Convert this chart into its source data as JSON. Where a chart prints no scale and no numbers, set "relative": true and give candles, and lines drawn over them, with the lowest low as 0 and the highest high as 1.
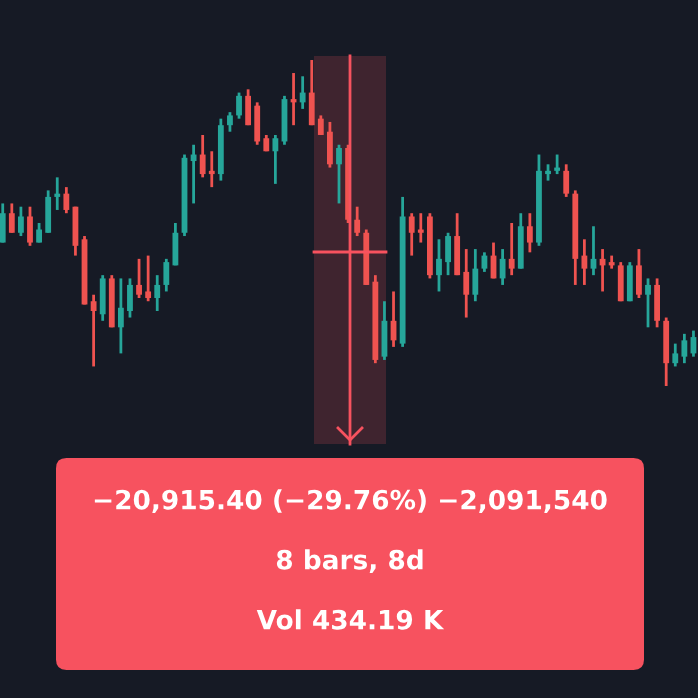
{
  "chart_data": {
    "type": "candlestick",
    "relative": true,
    "categories": [
      null,
      null,
      null,
      null,
      null,
      null,
      null,
      null,
      null,
      null,
      null,
      null,
      null,
      null,
      null,
      null,
      null,
      null,
      null,
      null,
      null,
      null,
      null,
      null,
      null,
      null,
      null,
      null,
      null,
      null,
      null,
      null,
      null,
      null,
      null,
      null,
      null,
      null,
      null,
      null,
      null,
      null,
      null,
      null,
      null,
      null,
      null,
      null,
      null,
      null,
      null,
      null,
      null,
      null,
      null,
      null,
      null,
      null,
      null,
      null,
      null,
      null,
      null,
      null,
      null,
      null,
      null,
      null,
      null,
      null,
      null,
      null,
      null,
      null,
      null,
      null,
      null
    ],
    "ohlc": [
      [
        0.44,
        0.56,
        0.44,
        0.53
      ],
      [
        0.53,
        0.56,
        0.47,
        0.47
      ],
      [
        0.47,
        0.55,
        0.46,
        0.52
      ],
      [
        0.52,
        0.55,
        0.43,
        0.44
      ],
      [
        0.44,
        0.5,
        0.44,
        0.48
      ],
      [
        0.47,
        0.6,
        0.47,
        0.58
      ],
      [
        0.58,
        0.64,
        0.54,
        0.59
      ],
      [
        0.59,
        0.61,
        0.53,
        0.54
      ],
      [
        0.55,
        0.55,
        0.4,
        0.43
      ],
      [
        0.45,
        0.46,
        0.25,
        0.25
      ],
      [
        0.26,
        0.28,
        0.06,
        0.23
      ],
      [
        0.22,
        0.34,
        0.2,
        0.33
      ],
      [
        0.33,
        0.34,
        0.18,
        0.18
      ],
      [
        0.18,
        0.33,
        0.1,
        0.24
      ],
      [
        0.23,
        0.33,
        0.21,
        0.31
      ],
      [
        0.31,
        0.39,
        0.27,
        0.28
      ],
      [
        0.29,
        0.4,
        0.26,
        0.27
      ],
      [
        0.27,
        0.34,
        0.23,
        0.31
      ],
      [
        0.31,
        0.39,
        0.29,
        0.38
      ],
      [
        0.37,
        0.5,
        0.37,
        0.47
      ],
      [
        0.47,
        0.71,
        0.46,
        0.7
      ],
      [
        0.69,
        0.74,
        0.56,
        0.71
      ],
      [
        0.71,
        0.77,
        0.64,
        0.65
      ],
      [
        0.66,
        0.72,
        0.61,
        0.65
      ],
      [
        0.65,
        0.82,
        0.63,
        0.8
      ],
      [
        0.8,
        0.84,
        0.78,
        0.83
      ],
      [
        0.83,
        0.9,
        0.82,
        0.89
      ],
      [
        0.89,
        0.91,
        0.8,
        0.8
      ],
      [
        0.86,
        0.87,
        0.74,
        0.75
      ],
      [
        0.76,
        0.77,
        0.72,
        0.72
      ],
      [
        0.72,
        0.77,
        0.62,
        0.76
      ],
      [
        0.75,
        0.89,
        0.74,
        0.88
      ],
      [
        0.88,
        0.96,
        0.8,
        0.87
      ],
      [
        0.87,
        0.95,
        0.85,
        0.9
      ],
      [
        0.9,
        1.0,
        0.8,
        0.8
      ],
      [
        0.82,
        0.83,
        0.77,
        0.77
      ],
      [
        0.78,
        0.81,
        0.67,
        0.68
      ],
      [
        0.68,
        0.74,
        0.56,
        0.73
      ],
      [
        0.73,
        0.74,
        0.5,
        0.51
      ],
      [
        0.51,
        0.55,
        0.46,
        0.47
      ],
      [
        0.47,
        0.48,
        0.31,
        0.31
      ],
      [
        0.32,
        0.34,
        0.07,
        0.08
      ],
      [
        0.09,
        0.26,
        0.08,
        0.2
      ],
      [
        0.2,
        0.29,
        0.12,
        0.14
      ],
      [
        0.13,
        0.58,
        0.12,
        0.52
      ],
      [
        0.52,
        0.53,
        0.4,
        0.47
      ],
      [
        0.48,
        0.53,
        0.44,
        0.47
      ],
      [
        0.52,
        0.53,
        0.33,
        0.34
      ],
      [
        0.34,
        0.45,
        0.29,
        0.39
      ],
      [
        0.38,
        0.47,
        0.34,
        0.46
      ],
      [
        0.46,
        0.53,
        0.34,
        0.34
      ],
      [
        0.35,
        0.42,
        0.21,
        0.28
      ],
      [
        0.28,
        0.42,
        0.26,
        0.36
      ],
      [
        0.36,
        0.41,
        0.35,
        0.4
      ],
      [
        0.4,
        0.44,
        0.33,
        0.33
      ],
      [
        0.33,
        0.42,
        0.31,
        0.39
      ],
      [
        0.39,
        0.5,
        0.34,
        0.36
      ],
      [
        0.36,
        0.53,
        0.36,
        0.49
      ],
      [
        0.49,
        0.53,
        0.41,
        0.44
      ],
      [
        0.44,
        0.71,
        0.43,
        0.66
      ],
      [
        0.65,
        0.68,
        0.63,
        0.66
      ],
      [
        0.66,
        0.71,
        0.65,
        0.67
      ],
      [
        0.66,
        0.68,
        0.58,
        0.59
      ],
      [
        0.59,
        0.6,
        0.31,
        0.39
      ],
      [
        0.4,
        0.45,
        0.31,
        0.36
      ],
      [
        0.36,
        0.49,
        0.34,
        0.39
      ],
      [
        0.39,
        0.42,
        0.29,
        0.37
      ],
      [
        0.38,
        0.4,
        0.36,
        0.37
      ],
      [
        0.37,
        0.38,
        0.26,
        0.26
      ],
      [
        0.26,
        0.38,
        0.26,
        0.37
      ],
      [
        0.37,
        0.42,
        0.27,
        0.28
      ],
      [
        0.28,
        0.33,
        0.18,
        0.31
      ],
      [
        0.31,
        0.33,
        0.18,
        0.2
      ],
      [
        0.2,
        0.21,
        0.0,
        0.07
      ],
      [
        0.07,
        0.13,
        0.06,
        0.1
      ],
      [
        0.09,
        0.16,
        0.07,
        0.14
      ],
      [
        0.1,
        0.17,
        0.09,
        0.15
      ]
    ],
    "colors": [
      "#26a69a",
      "#ef5350",
      "#26a69a",
      "#ef5350",
      "#26a69a",
      "#26a69a",
      "#26a69a",
      "#ef5350",
      "#ef5350",
      "#ef5350",
      "#ef5350",
      "#26a69a",
      "#ef5350",
      "#26a69a",
      "#26a69a",
      "#ef5350",
      "#ef5350",
      "#26a69a",
      "#26a69a",
      "#26a69a",
      "#26a69a",
      "#26a69a",
      "#ef5350",
      "#ef5350",
      "#26a69a",
      "#26a69a",
      "#26a69a",
      "#ef5350",
      "#ef5350",
      "#ef5350",
      "#26a69a",
      "#26a69a",
      "#ef5350",
      "#26a69a",
      "#ef5350",
      "#ef5350",
      "#ef5350",
      "#26a69a",
      "#ef5350",
      "#ef5350",
      "#ef5350",
      "#ef5350",
      "#26a69a",
      "#ef5350",
      "#26a69a",
      "#ef5350",
      "#ef5350",
      "#ef5350",
      "#26a69a",
      "#26a69a",
      "#ef5350",
      "#ef5350",
      "#26a69a",
      "#26a69a",
      "#ef5350",
      "#26a69a",
      "#ef5350",
      "#26a69a",
      "#ef5350",
      "#26a69a",
      "#26a69a",
      "#26a69a",
      "#ef5350",
      "#ef5350",
      "#ef5350",
      "#26a69a",
      "#ef5350",
      "#ef5350",
      "#ef5350",
      "#26a69a",
      "#ef5350",
      "#26a69a",
      "#ef5350",
      "#ef5350",
      "#26a69a",
      "#26a69a",
      "#26a69a"
    ],
    "annotations": [
      "−20,915.40 (−29.76%) −2,091,540",
      "8 bars, 8d",
      "Vol 434.19 K"
    ]
  }
}
